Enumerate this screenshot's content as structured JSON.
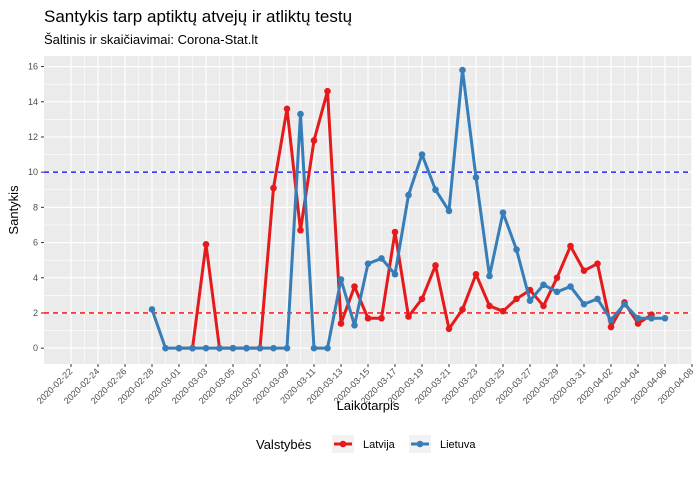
{
  "chart_data": {
    "type": "line",
    "title": "Santykis tarp aptiktų atvejų ir atliktų testų",
    "subtitle": "Šaltinis ir skaičiavimai: Corona-Stat.lt",
    "xlabel": "Laikotarpis",
    "ylabel": "Santykis",
    "xlim": [
      "2020-02-20",
      "2020-04-08"
    ],
    "ylim": [
      -0.9,
      16.6
    ],
    "y_ticks": [
      0,
      2,
      4,
      6,
      8,
      10,
      12,
      14,
      16
    ],
    "x_ticks": [
      "2020-02-22",
      "2020-02-24",
      "2020-02-26",
      "2020-02-28",
      "2020-03-01",
      "2020-03-03",
      "2020-03-05",
      "2020-03-07",
      "2020-03-09",
      "2020-03-11",
      "2020-03-13",
      "2020-03-15",
      "2020-03-17",
      "2020-03-19",
      "2020-03-21",
      "2020-03-23",
      "2020-03-25",
      "2020-03-27",
      "2020-03-29",
      "2020-03-31",
      "2020-04-02",
      "2020-04-04",
      "2020-04-06",
      "2020-04-08"
    ],
    "grid": true,
    "legend_title": "Valstybės",
    "legend_position": "bottom",
    "reference_lines": [
      {
        "y": 10,
        "color": "#0000ff",
        "style": "dashed"
      },
      {
        "y": 2,
        "color": "#ff0000",
        "style": "dashed"
      }
    ],
    "series": [
      {
        "name": "Latvija",
        "color": "#e41a1c",
        "points": [
          [
            "2020-03-01",
            0
          ],
          [
            "2020-03-02",
            0
          ],
          [
            "2020-03-03",
            5.9
          ],
          [
            "2020-03-04",
            0
          ],
          [
            "2020-03-05",
            0
          ],
          [
            "2020-03-06",
            0
          ],
          [
            "2020-03-07",
            0
          ],
          [
            "2020-03-08",
            9.1
          ],
          [
            "2020-03-09",
            13.6
          ],
          [
            "2020-03-10",
            6.7
          ],
          [
            "2020-03-11",
            11.8
          ],
          [
            "2020-03-12",
            14.6
          ],
          [
            "2020-03-13",
            1.4
          ],
          [
            "2020-03-14",
            3.5
          ],
          [
            "2020-03-15",
            1.7
          ],
          [
            "2020-03-16",
            1.7
          ],
          [
            "2020-03-17",
            6.6
          ],
          [
            "2020-03-18",
            1.8
          ],
          [
            "2020-03-19",
            2.8
          ],
          [
            "2020-03-20",
            4.7
          ],
          [
            "2020-03-21",
            1.1
          ],
          [
            "2020-03-22",
            2.2
          ],
          [
            "2020-03-23",
            4.2
          ],
          [
            "2020-03-24",
            2.4
          ],
          [
            "2020-03-25",
            2.1
          ],
          [
            "2020-03-26",
            2.8
          ],
          [
            "2020-03-27",
            3.3
          ],
          [
            "2020-03-28",
            2.4
          ],
          [
            "2020-03-29",
            4.0
          ],
          [
            "2020-03-30",
            5.8
          ],
          [
            "2020-03-31",
            4.4
          ],
          [
            "2020-04-01",
            4.8
          ],
          [
            "2020-04-02",
            1.2
          ],
          [
            "2020-04-03",
            2.6
          ],
          [
            "2020-04-04",
            1.4
          ],
          [
            "2020-04-05",
            1.9
          ]
        ]
      },
      {
        "name": "Lietuva",
        "color": "#377eb8",
        "points": [
          [
            "2020-02-28",
            2.2
          ],
          [
            "2020-02-29",
            0
          ],
          [
            "2020-03-01",
            0
          ],
          [
            "2020-03-02",
            0
          ],
          [
            "2020-03-03",
            0
          ],
          [
            "2020-03-04",
            0
          ],
          [
            "2020-03-05",
            0
          ],
          [
            "2020-03-06",
            0
          ],
          [
            "2020-03-07",
            0
          ],
          [
            "2020-03-08",
            0
          ],
          [
            "2020-03-09",
            0
          ],
          [
            "2020-03-10",
            13.3
          ],
          [
            "2020-03-11",
            0
          ],
          [
            "2020-03-12",
            0
          ],
          [
            "2020-03-13",
            3.9
          ],
          [
            "2020-03-14",
            1.3
          ],
          [
            "2020-03-15",
            4.8
          ],
          [
            "2020-03-16",
            5.1
          ],
          [
            "2020-03-17",
            4.2
          ],
          [
            "2020-03-18",
            8.7
          ],
          [
            "2020-03-19",
            11.0
          ],
          [
            "2020-03-20",
            9.0
          ],
          [
            "2020-03-21",
            7.8
          ],
          [
            "2020-03-22",
            15.8
          ],
          [
            "2020-03-23",
            9.7
          ],
          [
            "2020-03-24",
            4.1
          ],
          [
            "2020-03-25",
            7.7
          ],
          [
            "2020-03-26",
            5.6
          ],
          [
            "2020-03-27",
            2.7
          ],
          [
            "2020-03-28",
            3.6
          ],
          [
            "2020-03-29",
            3.2
          ],
          [
            "2020-03-30",
            3.5
          ],
          [
            "2020-03-31",
            2.5
          ],
          [
            "2020-04-01",
            2.8
          ],
          [
            "2020-04-02",
            1.6
          ],
          [
            "2020-04-03",
            2.5
          ],
          [
            "2020-04-04",
            1.7
          ],
          [
            "2020-04-05",
            1.7
          ],
          [
            "2020-04-06",
            1.7
          ]
        ]
      }
    ]
  }
}
